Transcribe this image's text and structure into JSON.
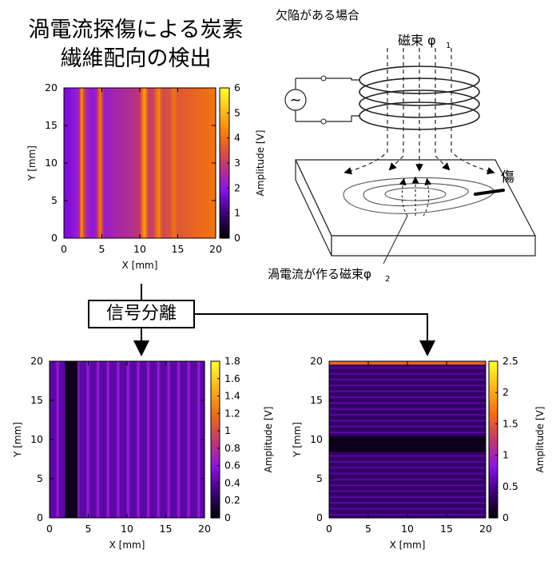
{
  "title": {
    "line1": "渦電流探傷による炭素",
    "line2": "繊維配向の検出"
  },
  "coil_diagram": {
    "caption": "欠陥がある場合",
    "flux1_label": "磁束 φ",
    "flux1_sub": "1",
    "defect_label": "傷",
    "flux2_label": "渦電流が作る磁束φ",
    "flux2_sub": "2",
    "source_symbol": "~"
  },
  "separation_label": "信号分離",
  "colormap": [
    "#000000",
    "#3c0078",
    "#8c14e6",
    "#c23a6a",
    "#f06e14",
    "#fdb41a",
    "#fefe30"
  ],
  "chart_data": [
    {
      "type": "heatmap",
      "id": "top",
      "xlabel": "X [mm]",
      "ylabel": "Y [mm]",
      "zlabel": "Amplitude [V]",
      "xlim": [
        0,
        20
      ],
      "ylim": [
        0,
        20
      ],
      "zlim": [
        0,
        6
      ],
      "xticks": [
        "0",
        "5",
        "10",
        "15",
        "20"
      ],
      "yticks": [
        "0",
        "5",
        "10",
        "15",
        "20"
      ],
      "zticks": [
        "0",
        "1",
        "2",
        "3",
        "4",
        "5",
        "6"
      ],
      "profile_axis": "x",
      "profile_x": [
        0,
        1,
        2,
        2.3,
        2.8,
        3.5,
        4.2,
        4.8,
        5.3,
        6,
        7,
        8,
        9,
        10,
        10.6,
        11.2,
        11.8,
        12.5,
        13,
        13.5,
        14,
        14.5,
        15,
        16,
        17,
        18,
        19,
        20
      ],
      "profile_values": [
        1.8,
        1.9,
        2.4,
        4.6,
        2.8,
        2.1,
        2.2,
        4.2,
        2.3,
        2.3,
        2.5,
        2.6,
        2.7,
        3.0,
        4.8,
        3.0,
        3.2,
        4.4,
        3.3,
        3.4,
        3.5,
        4.1,
        3.6,
        3.7,
        3.8,
        3.9,
        4.0,
        4.1
      ]
    },
    {
      "type": "heatmap",
      "id": "bottom-left",
      "xlabel": "X [mm]",
      "ylabel": "Y [mm]",
      "zlabel": "Amplitude [V]",
      "xlim": [
        0,
        20
      ],
      "ylim": [
        0,
        20
      ],
      "zlim": [
        0,
        1.8
      ],
      "xticks": [
        "0",
        "5",
        "10",
        "15",
        "20"
      ],
      "yticks": [
        "0",
        "5",
        "10",
        "15",
        "20"
      ],
      "zticks": [
        "0",
        "0.2",
        "0.4",
        "0.6",
        "0.8",
        "1",
        "1.2",
        "1.4",
        "1.6",
        "1.8"
      ],
      "profile_axis": "x",
      "stripe_period": 1.3,
      "stripe_phase": 0.4,
      "base_value": 0.42,
      "stripe_amplitude": 0.28,
      "dark_band_x": [
        2.0,
        3.6
      ],
      "dark_band_value": 0.08
    },
    {
      "type": "heatmap",
      "id": "bottom-right",
      "xlabel": "X [mm]",
      "ylabel": "Y [mm]",
      "zlabel": "Amplitude [V]",
      "xlim": [
        0,
        20
      ],
      "ylim": [
        0,
        20
      ],
      "zlim": [
        0,
        2.5
      ],
      "xticks": [
        "0",
        "5",
        "10",
        "15",
        "20"
      ],
      "yticks": [
        "0",
        "5",
        "10",
        "15",
        "20"
      ],
      "zticks": [
        "0",
        "0.5",
        "1",
        "1.5",
        "2",
        "2.5"
      ],
      "profile_axis": "y",
      "stripe_period": 0.75,
      "stripe_phase": 0.1,
      "base_value": 0.35,
      "stripe_amplitude": 0.3,
      "dark_band_y": [
        8.5,
        10.5
      ],
      "dark_band_value": 0.1,
      "top_edge_value": 1.6
    }
  ]
}
